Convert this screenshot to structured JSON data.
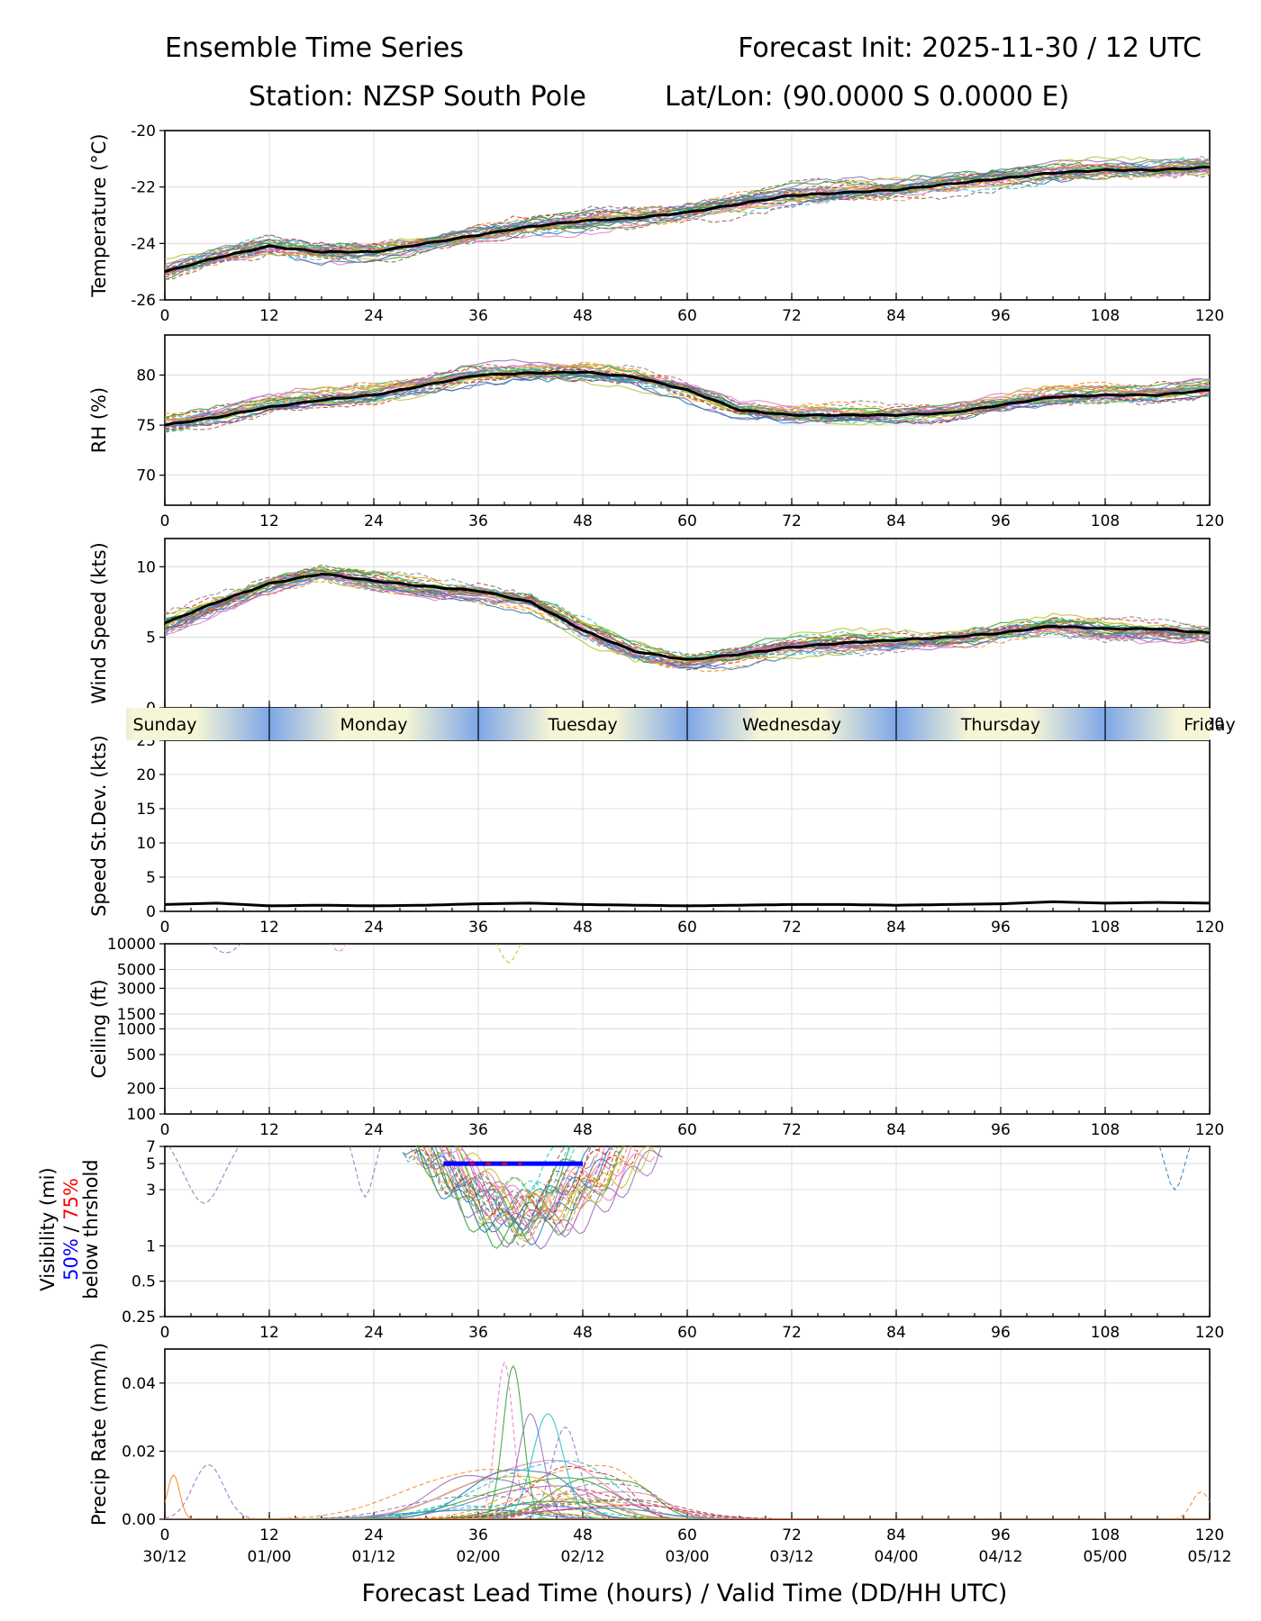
{
  "header": {
    "title_left": "Ensemble Time Series",
    "title_right": "Forecast Init: 2025-11-30 / 12 UTC",
    "station": "Station: NZSP South Pole",
    "latlon": "Lat/Lon: (90.0000 S 0.0000 E)"
  },
  "xlabel": "Forecast Lead Time (hours) / Valid Time (DD/HH UTC)",
  "lead_ticks": [
    "0",
    "12",
    "24",
    "36",
    "48",
    "60",
    "72",
    "84",
    "96",
    "108",
    "120"
  ],
  "valid_ticks": [
    "30/12",
    "01/00",
    "01/12",
    "02/00",
    "02/12",
    "03/00",
    "03/12",
    "04/00",
    "04/12",
    "05/00",
    "05/12"
  ],
  "day_bar": [
    "Sunday",
    "Monday",
    "Tuesday",
    "Wednesday",
    "Thursday",
    "Friday"
  ],
  "member_colors": [
    "#1f77b4",
    "#ff7f0e",
    "#2ca02c",
    "#d62728",
    "#9467bd",
    "#8c564b",
    "#e377c2",
    "#7f7f7f",
    "#bcbd22",
    "#17becf"
  ],
  "visibility_label": {
    "line1": "Visibility (mi)",
    "pct50": "50%",
    "sep": " / ",
    "pct75": "75%",
    "line3": "below thrshold"
  },
  "chart_data": [
    {
      "type": "line",
      "panel": "temperature",
      "ylabel": "Temperature (°C)",
      "ylim": [
        -26,
        -20
      ],
      "yticks": [
        "-20",
        "-22",
        "-24",
        "-26"
      ],
      "ytick_values": [
        -20,
        -22,
        -24,
        -26
      ],
      "x": [
        0,
        6,
        12,
        18,
        24,
        30,
        36,
        42,
        48,
        54,
        60,
        66,
        72,
        78,
        84,
        90,
        96,
        102,
        108,
        114,
        120
      ],
      "ensemble_mean": [
        -25.0,
        -24.5,
        -24.1,
        -24.3,
        -24.3,
        -24.0,
        -23.7,
        -23.4,
        -23.2,
        -23.1,
        -22.9,
        -22.6,
        -22.3,
        -22.2,
        -22.1,
        -21.9,
        -21.7,
        -21.5,
        -21.4,
        -21.4,
        -21.3
      ],
      "members": 30,
      "member_spread": 0.5
    },
    {
      "type": "line",
      "panel": "relative_humidity",
      "ylabel": "RH (%)",
      "ylim": [
        67,
        84
      ],
      "yticks": [
        "80",
        "75",
        "70"
      ],
      "ytick_values": [
        80,
        75,
        70
      ],
      "x": [
        0,
        6,
        12,
        18,
        24,
        30,
        36,
        42,
        48,
        54,
        60,
        66,
        72,
        78,
        84,
        90,
        96,
        102,
        108,
        114,
        120
      ],
      "ensemble_mean": [
        75.0,
        75.8,
        76.8,
        77.5,
        78.0,
        79.0,
        80.0,
        80.2,
        80.3,
        79.8,
        78.5,
        76.5,
        76.0,
        76.0,
        76.0,
        76.2,
        77.0,
        77.8,
        78.0,
        78.0,
        78.5
      ],
      "members": 30,
      "member_spread": 1.3
    },
    {
      "type": "line",
      "panel": "wind_speed",
      "ylabel": "Wind Speed (kts)",
      "ylim": [
        0,
        12
      ],
      "yticks": [
        "10",
        "5",
        "0"
      ],
      "ytick_values": [
        10,
        5,
        0
      ],
      "x": [
        0,
        6,
        12,
        18,
        24,
        30,
        36,
        42,
        48,
        54,
        60,
        66,
        72,
        78,
        84,
        90,
        96,
        102,
        108,
        114,
        120
      ],
      "ensemble_mean": [
        6.0,
        7.5,
        8.8,
        9.5,
        9.0,
        8.6,
        8.3,
        7.5,
        5.5,
        4.0,
        3.4,
        3.8,
        4.3,
        4.6,
        4.8,
        5.0,
        5.3,
        5.8,
        5.6,
        5.6,
        5.3
      ],
      "members": 30,
      "member_spread": 1.0
    },
    {
      "type": "line",
      "panel": "speed_stdev",
      "ylabel": "Speed St.Dev. (kts)",
      "ylim": [
        0,
        25
      ],
      "yticks": [
        "25",
        "20",
        "15",
        "10",
        "5",
        "0"
      ],
      "ytick_values": [
        25,
        20,
        15,
        10,
        5,
        0
      ],
      "x": [
        0,
        6,
        12,
        18,
        24,
        30,
        36,
        42,
        48,
        54,
        60,
        66,
        72,
        78,
        84,
        90,
        96,
        102,
        108,
        114,
        120
      ],
      "values": [
        1.0,
        1.2,
        0.8,
        0.9,
        0.8,
        0.9,
        1.1,
        1.2,
        1.0,
        0.9,
        0.8,
        0.9,
        1.0,
        1.0,
        0.9,
        1.0,
        1.1,
        1.4,
        1.2,
        1.3,
        1.2
      ]
    },
    {
      "type": "line",
      "panel": "ceiling",
      "ylabel": "Ceiling (ft)",
      "scale": "log",
      "ylim": [
        100,
        10000
      ],
      "yticks": [
        "10000",
        "5000",
        "3000",
        "1500",
        "1000",
        "500",
        "200",
        "100"
      ],
      "ytick_values": [
        10000,
        5000,
        3000,
        1500,
        1000,
        500,
        200,
        100
      ],
      "note": "Only a few members dip below 10000 ft near hours 7, 20 and 39-40"
    },
    {
      "type": "line",
      "panel": "visibility",
      "scale": "log",
      "ylim": [
        0.25,
        7
      ],
      "yticks": [
        "7",
        "5",
        "3",
        "1",
        "0.5",
        "0.25"
      ],
      "ytick_values": [
        7,
        5,
        3,
        1,
        0.5,
        0.25
      ],
      "threshold_50pct": {
        "x_start": 32,
        "x_end": 48,
        "value": 5
      },
      "threshold_75pct": {
        "x_start": 35,
        "x_end": 41,
        "value": 5
      },
      "note": "Most members drop to 1.5-3 mi between hours 28 and 58"
    },
    {
      "type": "line",
      "panel": "precip_rate",
      "ylabel": "Precip Rate (mm/h)",
      "ylim": [
        0,
        0.05
      ],
      "yticks": [
        "0.04",
        "0.02",
        "0.00"
      ],
      "ytick_values": [
        0.04,
        0.02,
        0
      ],
      "peak": {
        "x": 40,
        "value": 0.045
      },
      "note": "Most precipitation falls between hours 27 and 58"
    }
  ]
}
